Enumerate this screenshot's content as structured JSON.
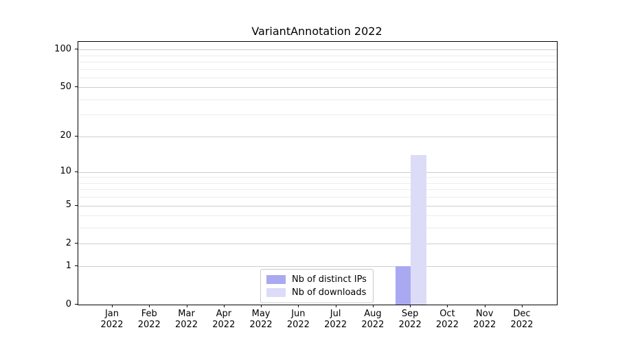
{
  "title": "VariantAnnotation 2022",
  "legend": {
    "items": [
      {
        "label": "Nb of distinct IPs",
        "color": "#a9a9f1"
      },
      {
        "label": "Nb of downloads",
        "color": "#dcdcf8"
      }
    ]
  },
  "axes": {
    "yticks": [
      0,
      1,
      2,
      5,
      10,
      20,
      50,
      100
    ],
    "minor_gridlines": [
      3,
      4,
      6,
      7,
      8,
      9,
      30,
      40,
      60,
      70,
      80,
      90
    ]
  },
  "chart_data": {
    "type": "bar",
    "title": "VariantAnnotation 2022",
    "categories": [
      "Jan 2022",
      "Feb 2022",
      "Mar 2022",
      "Apr 2022",
      "May 2022",
      "Jun 2022",
      "Jul 2022",
      "Aug 2022",
      "Sep 2022",
      "Oct 2022",
      "Nov 2022",
      "Dec 2022"
    ],
    "series": [
      {
        "name": "Nb of distinct IPs",
        "color": "#a9a9f1",
        "values": [
          0,
          0,
          0,
          0,
          0,
          0,
          0,
          0,
          1,
          0,
          0,
          0
        ]
      },
      {
        "name": "Nb of downloads",
        "color": "#dcdcf8",
        "values": [
          0,
          0,
          0,
          0,
          0,
          0,
          0,
          0,
          14,
          0,
          0,
          0
        ]
      }
    ],
    "xlabel": "",
    "ylabel": "",
    "yscale": "log10(1+x)",
    "yticks": [
      0,
      1,
      2,
      5,
      10,
      20,
      50,
      100
    ],
    "ylim": [
      0,
      115
    ],
    "grid": true,
    "legend_position": "lower center inside plot"
  }
}
